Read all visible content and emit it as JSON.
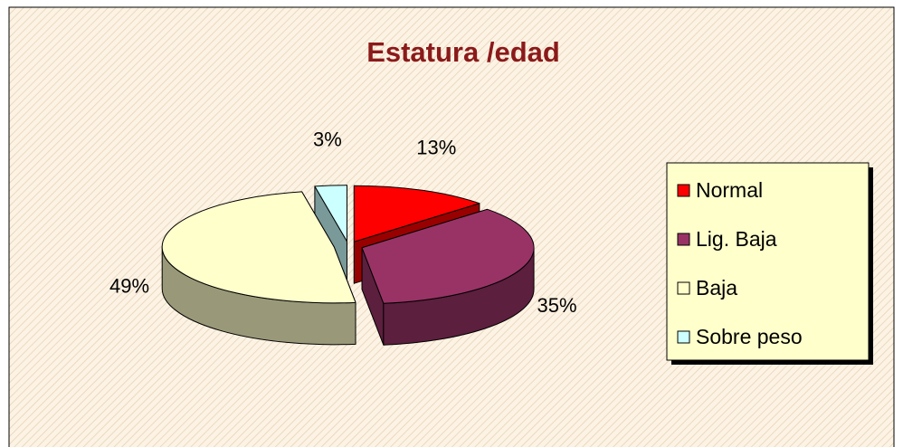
{
  "chart_data": {
    "type": "pie",
    "title": "Estatura /edad",
    "categories": [
      "Normal",
      "Lig. Baja",
      "Baja",
      "Sobre peso"
    ],
    "values": [
      13,
      35,
      49,
      3
    ],
    "value_labels": [
      "13%",
      "35%",
      "49%",
      "3%"
    ],
    "colors": [
      "#ff0000",
      "#993366",
      "#ffffcc",
      "#ccffff"
    ],
    "legend": "right"
  }
}
